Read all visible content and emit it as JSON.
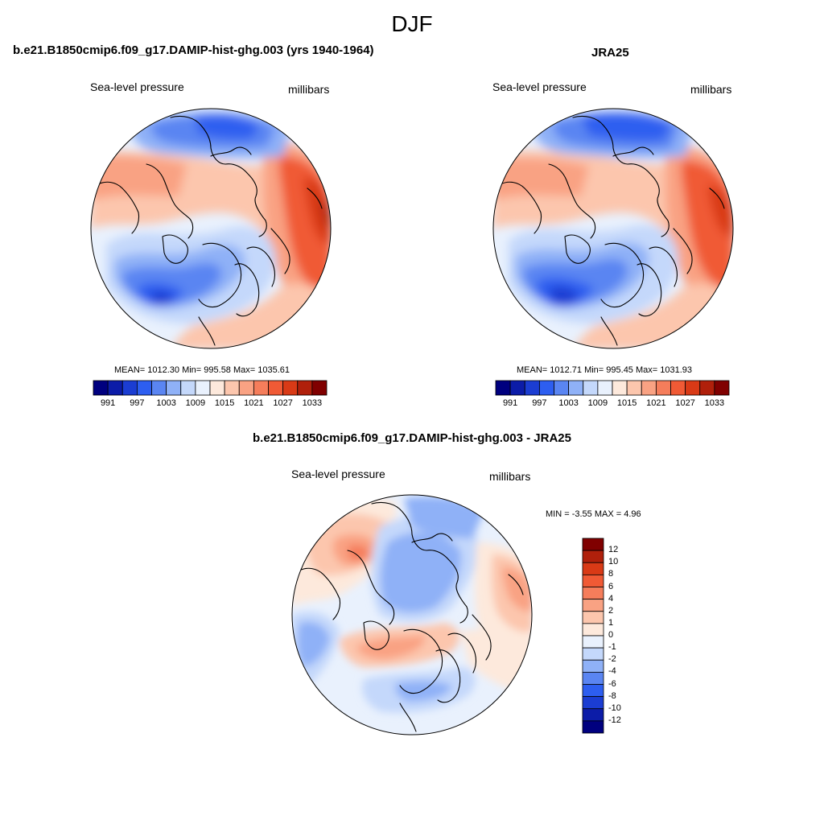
{
  "main_title": "DJF",
  "panels": [
    {
      "id": "model",
      "title": "b.e21.B1850cmip6.f09_g17.DAMIP-hist-ghg.003 (yrs 1940-1964)",
      "left_label": "Sea-level pressure",
      "right_label": "millibars",
      "stats": "MEAN= 1012.30  Min= 995.58  Max= 1035.61",
      "mean": 1012.3,
      "min": 995.58,
      "max": 1035.61
    },
    {
      "id": "obs",
      "title": "JRA25",
      "left_label": "Sea-level pressure",
      "right_label": "millibars",
      "stats": "MEAN= 1012.71  Min= 995.45  Max= 1031.93",
      "mean": 1012.71,
      "min": 995.45,
      "max": 1031.93
    },
    {
      "id": "diff",
      "title": "b.e21.B1850cmip6.f09_g17.DAMIP-hist-ghg.003 - JRA25",
      "left_label": "Sea-level pressure",
      "right_label": "millibars",
      "stats": "MIN =  -3.55 MAX =   4.96",
      "min": -3.55,
      "max": 4.96
    }
  ],
  "colorbar_abs": {
    "tick_labels": [
      "991",
      "997",
      "1003",
      "1009",
      "1015",
      "1021",
      "1027",
      "1033"
    ],
    "colors": [
      "#00007f",
      "#0c1ca8",
      "#1b3dd2",
      "#2d5ef0",
      "#5a85f2",
      "#8fb1f7",
      "#c4d8fb",
      "#e9f1fd",
      "#fde9dc",
      "#fcc6ad",
      "#f9a283",
      "#f57d5b",
      "#f05a35",
      "#d93a16",
      "#b0200b",
      "#800000"
    ]
  },
  "colorbar_diff": {
    "tick_labels": [
      "12",
      "10",
      "8",
      "6",
      "4",
      "2",
      "1",
      "0",
      "-1",
      "-2",
      "-4",
      "-6",
      "-8",
      "-10",
      "-12"
    ],
    "colors": [
      "#800000",
      "#b0200b",
      "#d93a16",
      "#f05a35",
      "#f57d5b",
      "#f9a283",
      "#fcc6ad",
      "#fde9dc",
      "#e9f1fd",
      "#c4d8fb",
      "#8fb1f7",
      "#5a85f2",
      "#2d5ef0",
      "#1b3dd2",
      "#0c1ca8",
      "#00007f"
    ]
  }
}
